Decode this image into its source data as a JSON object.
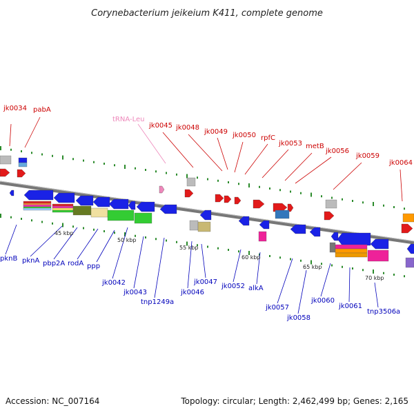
{
  "title": "Corynebacterium jeikeium K411, complete genome",
  "accession": "Accession: NC_007164",
  "topology": "Topology: circular; Length: 2,462,499 bp; Genes: 2,165",
  "colors": {
    "forward_label": "#cc0000",
    "reverse_label": "#0000bb",
    "trna_label": "#ee88bb",
    "backbone": "#777777"
  },
  "forward_labels": [
    "jk0034",
    "pabA",
    "jk0045",
    "jk0048",
    "jk0049",
    "jk0050",
    "rpfC",
    "jk0053",
    "metB",
    "jk0056",
    "jk0059",
    "jk0064"
  ],
  "trna_label": "tRNA-Leu",
  "reverse_labels": [
    "pknB",
    "pknA",
    "pbp2A",
    "rodA",
    "ppp",
    "jk0042",
    "jk0043",
    "tnp1249a",
    "jk0046",
    "jk0047",
    "jk0052",
    "alkA",
    "jk0057",
    "jk0058",
    "jk0060",
    "jk0061",
    "tnp3506a"
  ],
  "scale_ticks": [
    "45 kbp",
    "50 kbp",
    "55 kbp",
    "60 kbp",
    "65 kbp",
    "70 kbp"
  ]
}
